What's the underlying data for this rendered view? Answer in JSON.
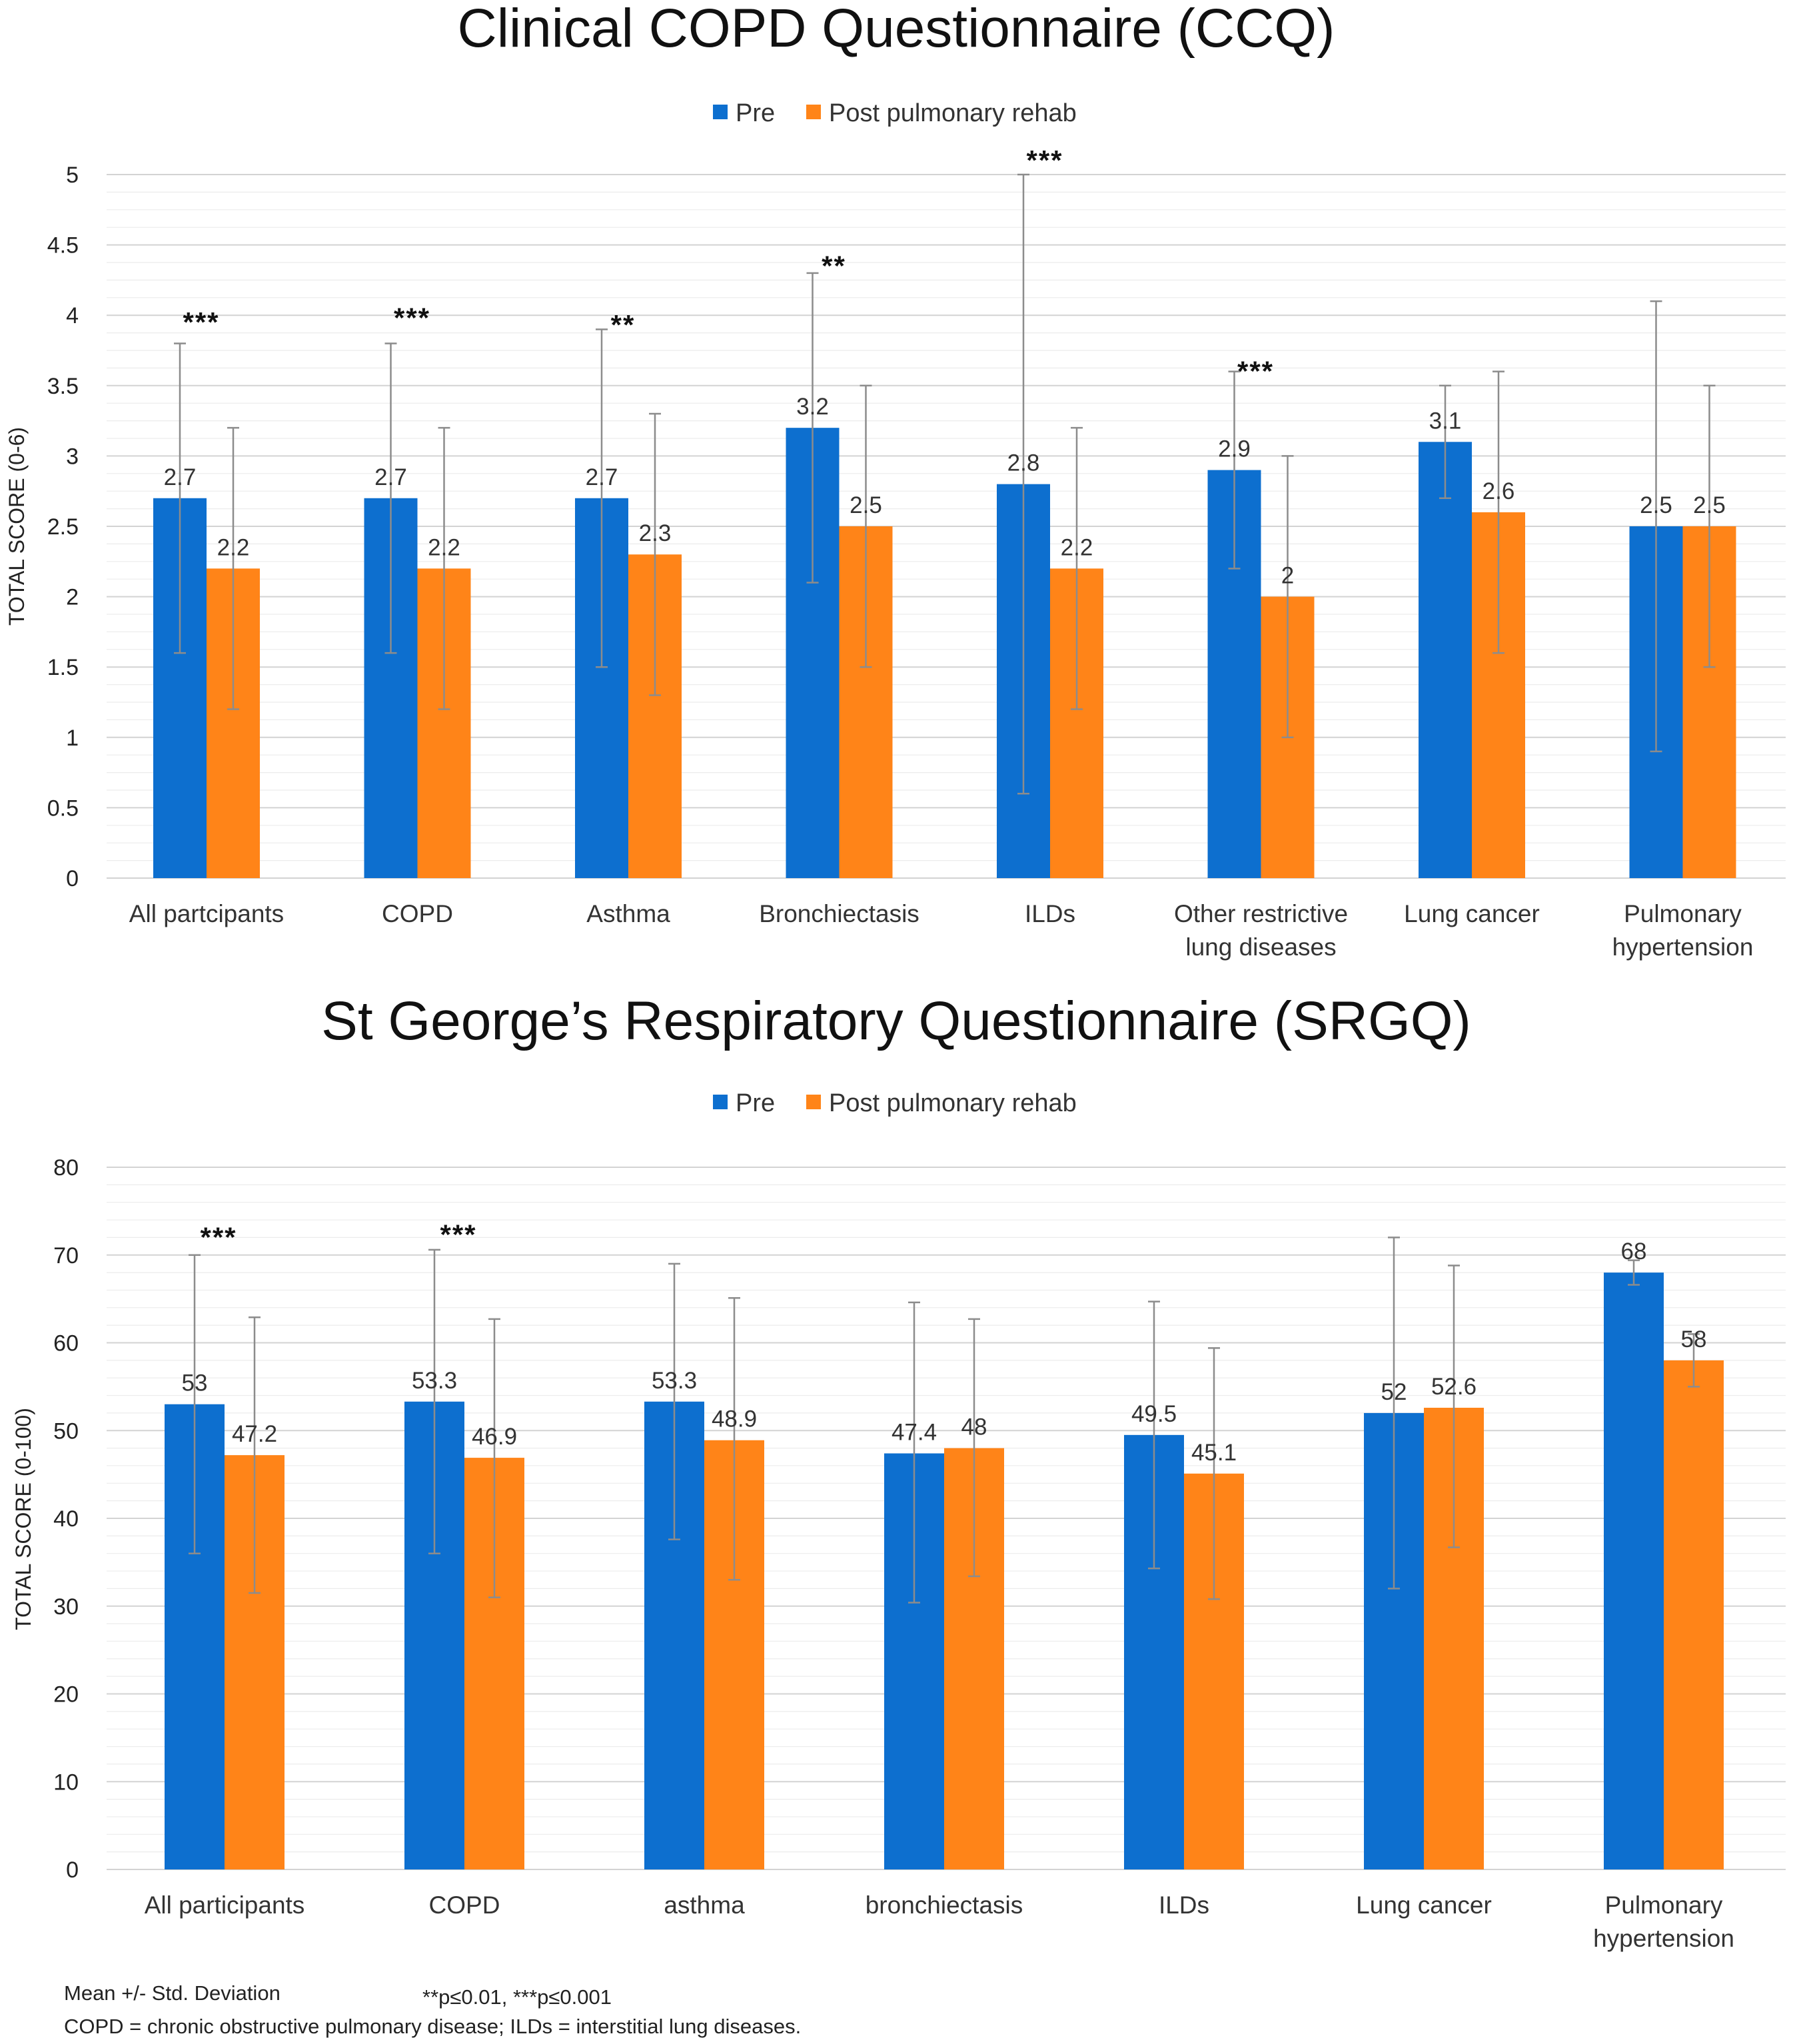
{
  "colors": {
    "pre": "#0d6fcf",
    "post": "#ff8418",
    "errbar": "#8c8c8c",
    "grid": "#dcdcdc"
  },
  "chart_data": [
    {
      "type": "bar",
      "title": "Clinical COPD Questionnaire (CCQ)",
      "ylabel": "TOTAL SCORE (0-6)",
      "ylim": [
        0,
        5
      ],
      "yticks": [
        "0",
        "0.5",
        "1",
        "1.5",
        "2",
        "2.5",
        "3",
        "3.5",
        "4",
        "4.5",
        "5"
      ],
      "legend": [
        "Pre",
        "Post pulmonary rehab"
      ],
      "legend_position": "top-center",
      "categories": [
        [
          "All partcipants"
        ],
        [
          "COPD"
        ],
        [
          "Asthma"
        ],
        [
          "Bronchiectasis"
        ],
        [
          "ILDs"
        ],
        [
          "Other restrictive",
          "lung diseases"
        ],
        [
          "Lung cancer"
        ],
        [
          "Pulmonary",
          "hypertension"
        ]
      ],
      "series": [
        {
          "name": "Pre",
          "values": [
            2.7,
            2.7,
            2.7,
            3.2,
            2.8,
            2.9,
            3.1,
            2.5
          ],
          "labels": [
            "2.7",
            "2.7",
            "2.7",
            "3.2",
            "2.8",
            "2.9",
            "3.1",
            "2.5"
          ],
          "error": [
            [
              1.6,
              3.8
            ],
            [
              1.6,
              3.8
            ],
            [
              1.5,
              3.9
            ],
            [
              2.1,
              4.3
            ],
            [
              0.6,
              5.0
            ],
            [
              2.2,
              3.6
            ],
            [
              2.7,
              3.5
            ],
            [
              0.9,
              4.1
            ]
          ]
        },
        {
          "name": "Post pulmonary rehab",
          "values": [
            2.2,
            2.2,
            2.3,
            2.5,
            2.2,
            2.0,
            2.6,
            2.5
          ],
          "labels": [
            "2.2",
            "2.2",
            "2.3",
            "2.5",
            "2.2",
            "2",
            "2.6",
            "2.5"
          ],
          "error": [
            [
              1.2,
              3.2
            ],
            [
              1.2,
              3.2
            ],
            [
              1.3,
              3.3
            ],
            [
              1.5,
              3.5
            ],
            [
              1.2,
              3.2
            ],
            [
              1.0,
              3.0
            ],
            [
              1.6,
              3.6
            ],
            [
              1.5,
              3.5
            ]
          ]
        }
      ],
      "significance": [
        "***",
        "***",
        "**",
        "**",
        "***",
        "***",
        "",
        ""
      ],
      "sig_anchor": [
        3.95,
        3.98,
        3.93,
        4.35,
        5.1,
        3.6,
        null,
        null
      ]
    },
    {
      "type": "bar",
      "title": "St George’s Respiratory Questionnaire (SRGQ)",
      "ylabel": "TOTAL SCORE  (0-100)",
      "ylim": [
        0,
        80
      ],
      "yticks": [
        "0",
        "10",
        "20",
        "30",
        "40",
        "50",
        "60",
        "70",
        "80"
      ],
      "legend": [
        "Pre",
        "Post pulmonary rehab"
      ],
      "legend_position": "top-center",
      "categories": [
        [
          "All participants"
        ],
        [
          "COPD"
        ],
        [
          "asthma"
        ],
        [
          "bronchiectasis"
        ],
        [
          "ILDs"
        ],
        [
          "Lung cancer"
        ],
        [
          "Pulmonary",
          "hypertension"
        ]
      ],
      "series": [
        {
          "name": "Pre",
          "values": [
            53,
            53.3,
            53.3,
            47.4,
            49.5,
            52,
            68
          ],
          "labels": [
            "53",
            "53.3",
            "53.3",
            "47.4",
            "49.5",
            "52",
            "68"
          ],
          "error": [
            [
              36,
              70
            ],
            [
              36,
              70.6
            ],
            [
              37.6,
              69
            ],
            [
              30.4,
              64.6
            ],
            [
              34.3,
              64.7
            ],
            [
              32,
              72
            ],
            [
              66.6,
              69.4
            ]
          ]
        },
        {
          "name": "Post pulmonary rehab",
          "values": [
            47.2,
            46.9,
            48.9,
            48,
            45.1,
            52.6,
            58
          ],
          "labels": [
            "47.2",
            "46.9",
            "48.9",
            "48",
            "45.1",
            "52.6",
            "58"
          ],
          "error": [
            [
              31.5,
              62.9
            ],
            [
              31,
              62.7
            ],
            [
              33,
              65.1
            ],
            [
              33.4,
              62.7
            ],
            [
              30.8,
              59.4
            ],
            [
              36.7,
              68.8
            ],
            [
              55,
              61
            ]
          ]
        }
      ],
      "significance": [
        "***",
        "***",
        "",
        "",
        "",
        "",
        ""
      ],
      "sig_anchor": [
        72,
        72.3,
        null,
        null,
        null,
        null,
        null
      ]
    }
  ],
  "footnote": {
    "line1_left": "Mean +/-  Std. Deviation",
    "line1_right": "**p≤0.01,  ***p≤0.001",
    "line2": "COPD = chronic obstructive pulmonary disease; ILDs = interstitial lung diseases."
  }
}
